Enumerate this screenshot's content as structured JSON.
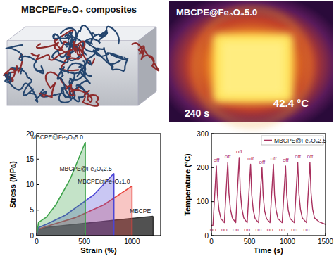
{
  "chart_data": [
    {
      "type": "area",
      "x_label": "Strain (%)",
      "y_label": "Stress (MPa)",
      "xlim": [
        0,
        1300
      ],
      "ylim": [
        0,
        20
      ],
      "xticks": [
        0,
        500,
        1000
      ],
      "yticks": [
        0,
        5,
        10,
        15,
        20
      ],
      "series": [
        {
          "name": "MBCPE",
          "color": "#333333",
          "x": [
            0,
            20,
            100,
            400,
            800,
            1220
          ],
          "values": [
            0,
            1.2,
            1.6,
            2.2,
            3.0,
            3.8
          ]
        },
        {
          "name": "MBCPE@Fe₃O₄1.0",
          "color": "#e8433c",
          "x": [
            0,
            20,
            100,
            400,
            700,
            1000
          ],
          "values": [
            0,
            1.3,
            1.8,
            3.5,
            6.0,
            9.7
          ]
        },
        {
          "name": "MBCPE@Fe₃O₄2.5",
          "color": "#4b45d6",
          "x": [
            0,
            20,
            100,
            300,
            600,
            810
          ],
          "values": [
            0,
            1.6,
            2.2,
            4.0,
            8.0,
            12.2
          ]
        },
        {
          "name": "MBCPE@Fe₃O₄5.0",
          "color": "#3da34a",
          "x": [
            0,
            20,
            100,
            200,
            350,
            510
          ],
          "values": [
            0,
            2.6,
            3.6,
            6.0,
            11.0,
            18.3
          ]
        }
      ]
    },
    {
      "type": "line",
      "x_label": "Time (s)",
      "y_label": "Temperature (°C)",
      "xlim": [
        0,
        1500
      ],
      "ylim": [
        0,
        300
      ],
      "xticks": [
        0,
        500,
        1000,
        1500
      ],
      "yticks": [
        0,
        100,
        200,
        300
      ],
      "legend": "top-right",
      "series": [
        {
          "name": "MBCPE@Fe₃O₄2.5",
          "color": "#a8305e",
          "x": [
            0,
            20,
            65,
            80,
            100,
            125,
            170,
            215,
            230,
            250,
            275,
            320,
            365,
            380,
            400,
            425,
            470,
            515,
            530,
            550,
            575,
            620,
            665,
            680,
            700,
            725,
            770,
            815,
            830,
            850,
            875,
            930,
            975,
            990,
            1010,
            1035,
            1090,
            1135,
            1150,
            1170,
            1195,
            1250,
            1295,
            1310,
            1330,
            1355,
            1420,
            1500
          ],
          "values": [
            30,
            30,
            205,
            120,
            75,
            50,
            38,
            215,
            125,
            78,
            52,
            38,
            230,
            130,
            80,
            52,
            38,
            210,
            120,
            75,
            50,
            38,
            200,
            118,
            72,
            50,
            38,
            210,
            120,
            75,
            50,
            38,
            205,
            120,
            75,
            50,
            38,
            215,
            125,
            78,
            52,
            38,
            215,
            125,
            78,
            52,
            40,
            33
          ]
        }
      ],
      "annotations": [
        {
          "text": "off",
          "x": 65,
          "y": 217
        },
        {
          "text": "off",
          "x": 215,
          "y": 227
        },
        {
          "text": "off",
          "x": 365,
          "y": 242
        },
        {
          "text": "off",
          "x": 515,
          "y": 222
        },
        {
          "text": "off",
          "x": 665,
          "y": 212
        },
        {
          "text": "off",
          "x": 815,
          "y": 222
        },
        {
          "text": "off",
          "x": 975,
          "y": 217
        },
        {
          "text": "off",
          "x": 1135,
          "y": 227
        },
        {
          "text": "off",
          "x": 1295,
          "y": 227
        },
        {
          "text": "on",
          "x": 20,
          "y": 12
        },
        {
          "text": "on",
          "x": 170,
          "y": 12
        },
        {
          "text": "on",
          "x": 320,
          "y": 12
        },
        {
          "text": "on",
          "x": 470,
          "y": 12
        },
        {
          "text": "on",
          "x": 620,
          "y": 12
        },
        {
          "text": "on",
          "x": 770,
          "y": 12
        },
        {
          "text": "on",
          "x": 930,
          "y": 12
        },
        {
          "text": "on",
          "x": 1090,
          "y": 12
        },
        {
          "text": "on",
          "x": 1250,
          "y": 12
        }
      ]
    }
  ],
  "schematic": {
    "title": "MBCPE/Fe₃O₄ composites"
  },
  "thermal_image": {
    "label": "MBCPE@Fe₃O₄5.0",
    "temperature_label": "42.4 °C",
    "time_label": "240 s"
  }
}
